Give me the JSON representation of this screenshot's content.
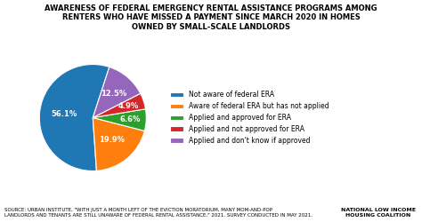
{
  "chart_data": {
    "type": "pie",
    "title": "AWARENESS OF FEDERAL EMERGENCY RENTAL ASSISTANCE PROGRAMS AMONG\nRENTERS WHO HAVE MISSED A PAYMENT SINCE MARCH 2020 IN HOMES\nOWNED BY SMALL-SCALE LANDLORDS",
    "categories": [
      "Not aware of federal ERA",
      "Aware of federal ERA but has not applied",
      "Applied and approved for ERA",
      "Applied and not approved for ERA",
      "Applied and don't know if approved"
    ],
    "values": [
      56.1,
      19.9,
      6.6,
      4.9,
      12.5
    ],
    "value_labels": [
      "56.1%",
      "19.9%",
      "6.6%",
      "4.9%",
      "12.5%"
    ],
    "data_labels": true,
    "legend": "right",
    "annotations": [
      "SOURCE: URBAN INSTITUTE, \"WITH JUST A MONTH LEFT OF THE EVICTION MORATORIUM, MANY MOM-AND-POP\nLANDLORDS AND TENANTS ARE STILL UNAWARE OF FEDERAL RENTAL ASSISTANCE,\" 2021. SURVEY CONDUCTED IN MAY 2021.",
      "NATIONAL LOW INCOME\nHOUSING COALITION"
    ]
  }
}
